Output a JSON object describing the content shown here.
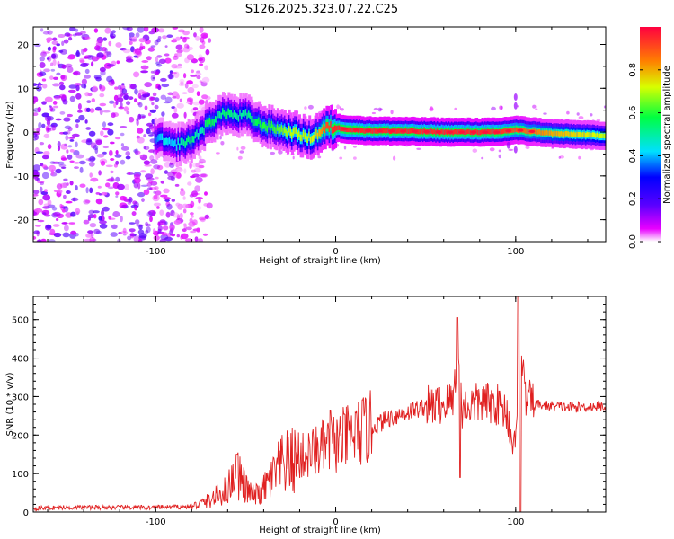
{
  "chart_data": [
    {
      "type": "heatmap",
      "title": "S126.2025.323.07.22.C25",
      "xlabel": "Height of straight line (km)",
      "ylabel": "Frequency (Hz)",
      "xlim": [
        -168,
        150
      ],
      "ylim": [
        -25,
        24
      ],
      "x_ticks": [
        -100,
        0,
        100
      ],
      "y_ticks": [
        -20,
        -10,
        0,
        10,
        20
      ],
      "colorbar": {
        "label": "Normalized spectral amplitude",
        "range": [
          0,
          1
        ],
        "ticks": [
          "0.0",
          "0.2",
          "0.4",
          "0.6",
          "0.8"
        ]
      },
      "ridge": {
        "x": [
          -100,
          -95,
          -90,
          -85,
          -80,
          -75,
          -70,
          -65,
          -60,
          -55,
          -50,
          -45,
          -40,
          -35,
          -30,
          -25,
          -20,
          -15,
          -10,
          -5,
          0,
          10,
          20,
          40,
          60,
          80,
          90,
          100,
          120,
          150
        ],
        "freq": [
          -1,
          -2,
          -3,
          -2.5,
          -2,
          0,
          2,
          3.5,
          4.5,
          3.5,
          4,
          2.5,
          1.5,
          1,
          0.5,
          0,
          -0.5,
          -1.5,
          -0.5,
          1,
          1,
          0.5,
          0.3,
          0.2,
          0,
          0,
          0,
          0.5,
          -0.3,
          -0.8
        ],
        "amp": [
          0.35,
          0.45,
          0.4,
          0.5,
          0.55,
          0.45,
          0.6,
          0.5,
          0.55,
          0.5,
          0.5,
          0.55,
          0.6,
          0.6,
          0.65,
          0.7,
          0.7,
          0.7,
          0.75,
          0.9,
          0.95,
          0.95,
          0.95,
          0.95,
          0.95,
          0.95,
          0.95,
          0.9,
          0.8,
          0.7
        ]
      },
      "noise_region": [
        -168,
        -80
      ]
    },
    {
      "type": "line",
      "xlabel": "Height of straight line (km)",
      "ylabel": "SNR (10 * v/v)",
      "xlim": [
        -168,
        150
      ],
      "ylim": [
        0,
        560
      ],
      "x_ticks": [
        -100,
        0,
        100
      ],
      "y_ticks": [
        0,
        100,
        200,
        300,
        400,
        500
      ],
      "color": "#e02020",
      "series": [
        {
          "name": "SNR",
          "x": [
            -168,
            -150,
            -120,
            -100,
            -80,
            -70,
            -60,
            -55,
            -50,
            -45,
            -40,
            -30,
            -20,
            -10,
            0,
            10,
            20,
            30,
            40,
            50,
            60,
            65,
            68,
            70,
            80,
            90,
            95,
            100,
            102,
            105,
            110,
            120,
            130,
            150
          ],
          "y": [
            10,
            12,
            12,
            12,
            14,
            30,
            60,
            110,
            60,
            40,
            60,
            120,
            140,
            160,
            180,
            200,
            220,
            245,
            260,
            275,
            280,
            290,
            420,
            270,
            285,
            280,
            260,
            150,
            520,
            300,
            280,
            275,
            272,
            275
          ],
          "spikes": [
            {
              "x": 67.5,
              "y": 505
            },
            {
              "x": 69,
              "y": 90
            },
            {
              "x": 101.5,
              "y": 560
            },
            {
              "x": 102.5,
              "y": 0
            },
            {
              "x": -55,
              "y": 150
            },
            {
              "x": -3,
              "y": 265
            }
          ]
        }
      ]
    }
  ]
}
